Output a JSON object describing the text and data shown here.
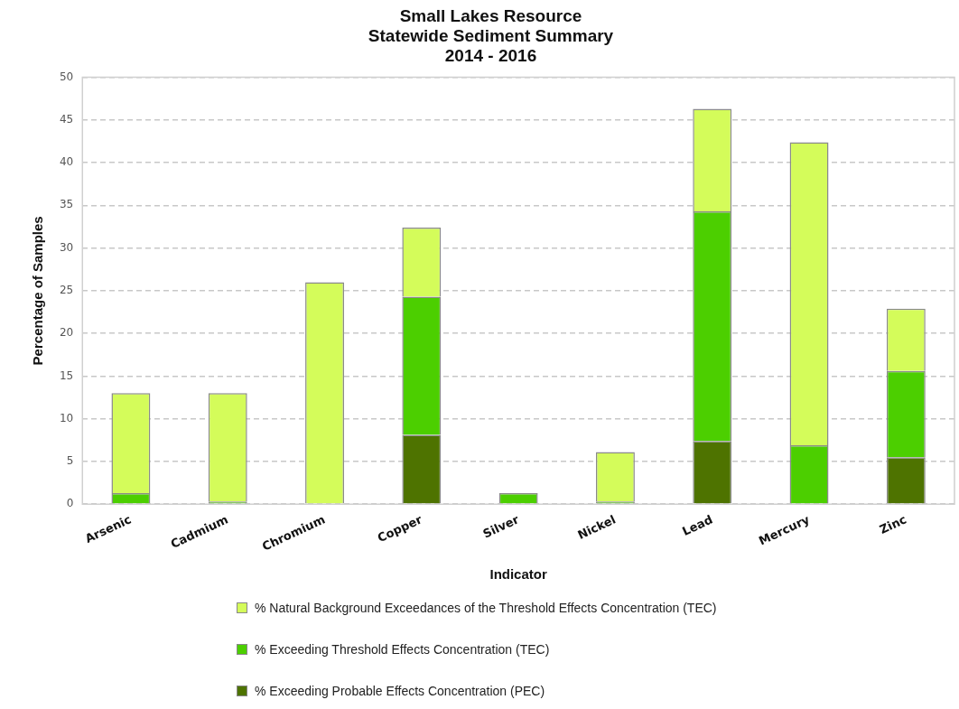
{
  "chart_data": {
    "type": "bar",
    "title": "Small Lakes Resource\nStatewide Sediment Summary\n2014 - 2016",
    "xlabel": "Indicator",
    "ylabel": "Percentage of Samples",
    "categories": [
      "Arsenic",
      "Cadmium",
      "Chromium",
      "Copper",
      "Silver",
      "Nickel",
      "Lead",
      "Mercury",
      "Zinc"
    ],
    "stacked": true,
    "ylim": [
      0,
      50
    ],
    "yticks": [
      0,
      5,
      10,
      15,
      20,
      25,
      30,
      35,
      40,
      45,
      50
    ],
    "grid": "y",
    "legend": "bottom",
    "series": [
      {
        "name": "% Exceeding Probable Effects Concentration (PEC)",
        "color": "#4e7300",
        "values": [
          0,
          0,
          0,
          8.1,
          0,
          0,
          7.4,
          0,
          5.5
        ]
      },
      {
        "name": "% Exceeding Threshold Effects Concentration (TEC)",
        "color": "#4ccf00",
        "values": [
          1.3,
          0.3,
          0,
          16.2,
          1.3,
          0.3,
          26.9,
          6.9,
          10.1
        ]
      },
      {
        "name": "% Natural Background Exceedances of the Threshold Effects Concentration (TEC)",
        "color": "#d4fc5a",
        "values": [
          11.7,
          12.7,
          26,
          8.1,
          0,
          5.8,
          12,
          35.5,
          7.3
        ]
      }
    ]
  }
}
